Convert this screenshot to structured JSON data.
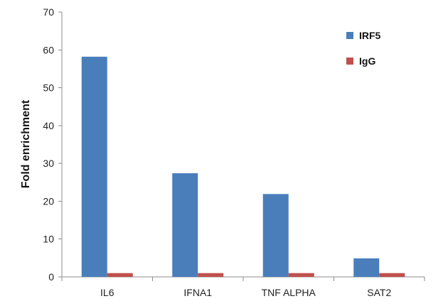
{
  "chart_data": {
    "type": "bar",
    "title": "",
    "xlabel": "",
    "ylabel": "Fold enrichment",
    "ylim": [
      0,
      70
    ],
    "yticks": [
      0,
      10,
      20,
      30,
      40,
      50,
      60,
      70
    ],
    "categories": [
      "IL6",
      "IFNA1",
      "TNF ALPHA",
      "SAT2"
    ],
    "series": [
      {
        "name": "IRF5",
        "values": [
          58.2,
          27.4,
          21.9,
          4.9
        ],
        "color": "#4a7ebb"
      },
      {
        "name": "IgG",
        "values": [
          1.0,
          1.0,
          1.0,
          1.0
        ],
        "color": "#c0504d"
      }
    ],
    "grid": false,
    "legend": "top-right"
  }
}
